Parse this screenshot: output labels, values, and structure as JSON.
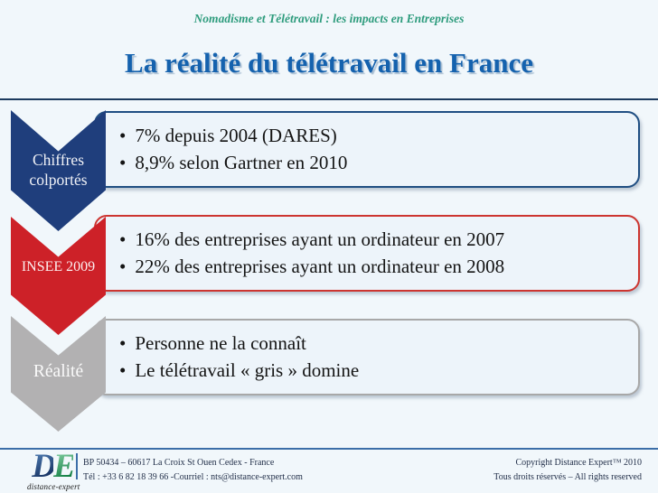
{
  "slide": {
    "context": "Nomadisme et Télétravail : les impacts en Entreprises",
    "title": "La réalité du télétravail en France"
  },
  "rows": [
    {
      "label": "Chiffres colportés",
      "accent": "#1f3e7c",
      "bullets": [
        "7% depuis 2004 (DARES)",
        "8,9% selon Gartner en 2010"
      ]
    },
    {
      "label": "INSEE 2009",
      "accent": "#cd2128",
      "bullets": [
        "16% des entreprises ayant un ordinateur en 2007",
        "22% des entreprises ayant un ordinateur en 2008"
      ]
    },
    {
      "label": "Réalité",
      "accent": "#b2b1b2",
      "bullets": [
        "Personne ne la connaît",
        "Le télétravail « gris » domine"
      ]
    }
  ],
  "footer": {
    "logo": {
      "letter_d": "D",
      "letter_e": "E",
      "subtitle": "distance-expert"
    },
    "address_line1": "BP 50434 – 60617 La Croix St Ouen Cedex - France",
    "address_line2": "Tél : +33  6 82 18 39 66 -Courriel : nts@distance-expert.com",
    "copyright_line1": "Copyright Distance Expert™ 2010",
    "copyright_line2": "Tous droits réservés – All rights reserved"
  },
  "colors": {
    "background": "#f1f7fb",
    "context_text": "#2e9c7d",
    "title_text": "#1562ae",
    "divider_top": "#1c3a5e",
    "divider_bottom": "#3c6ea8",
    "box_border_blue": "#1f4e82",
    "box_border_red": "#cd3530",
    "box_border_gray": "#a8a8a8",
    "box_fill": "#edf4fa"
  }
}
